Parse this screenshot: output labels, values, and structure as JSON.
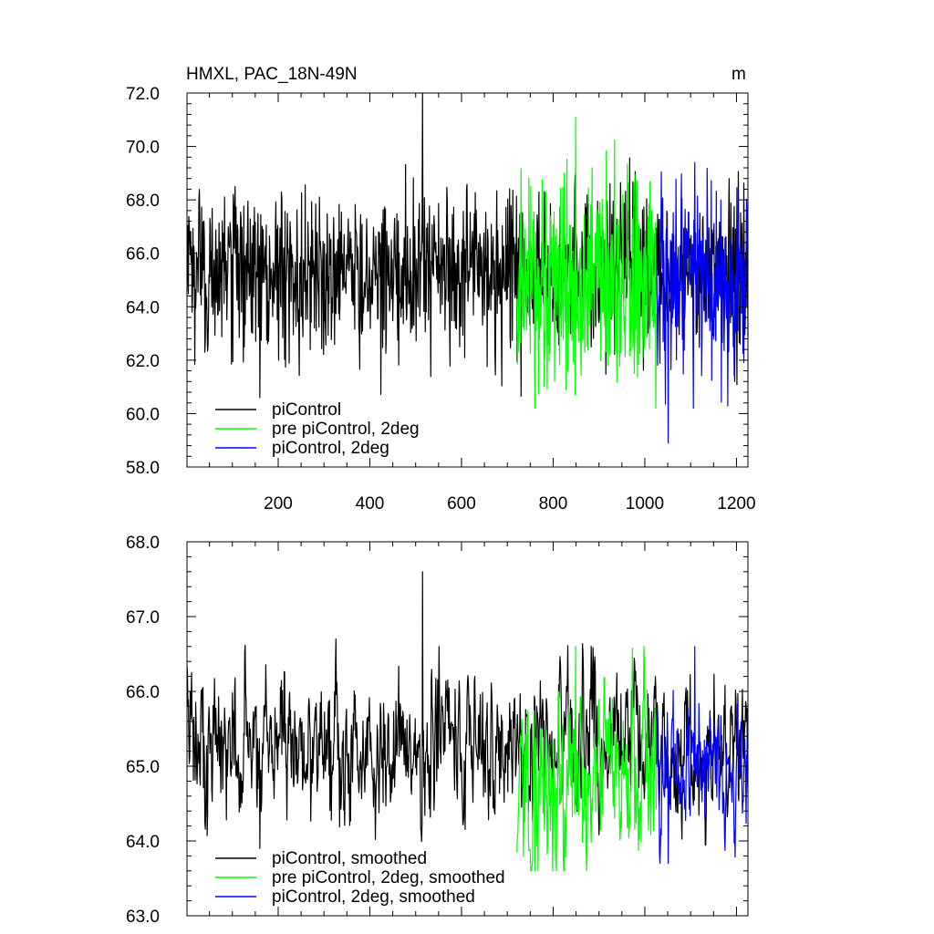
{
  "chart_data": [
    {
      "type": "line",
      "title": "HMXL, PAC_18N-49N",
      "units": "m",
      "xlim": [
        1,
        1225
      ],
      "ylim": [
        58.0,
        72.0
      ],
      "xticks": [
        200,
        400,
        600,
        800,
        1000,
        1200
      ],
      "xtick_labels": [
        "200",
        "400",
        "600",
        "800",
        "1000",
        "1200"
      ],
      "yticks": [
        58.0,
        60.0,
        62.0,
        64.0,
        66.0,
        68.0,
        70.0,
        72.0
      ],
      "ytick_labels": [
        "58.0",
        "60.0",
        "62.0",
        "64.0",
        "66.0",
        "68.0",
        "70.0",
        "72.0"
      ],
      "grid": false,
      "legend_position": "bottom-left",
      "series": [
        {
          "name": "piControl",
          "color": "#000000",
          "x_range": [
            1,
            1225
          ],
          "mean": 65.3,
          "sd": 1.5,
          "min": 60.6,
          "max": 72.0
        },
        {
          "name": "pre piControl, 2deg",
          "color": "#00ff00",
          "x_range": [
            721,
            1025
          ],
          "mean": 64.9,
          "sd": 1.9,
          "min": 60.2,
          "max": 71.1
        },
        {
          "name": "piControl, 2deg",
          "color": "#0000ff",
          "x_range": [
            1025,
            1225
          ],
          "mean": 64.9,
          "sd": 1.8,
          "min": 58.9,
          "max": 69.4
        }
      ]
    },
    {
      "type": "line",
      "title": "",
      "xlim": [
        1,
        1225
      ],
      "ylim": [
        63.0,
        68.0
      ],
      "xticks": [
        200,
        400,
        600,
        800,
        1000,
        1200
      ],
      "yticks": [
        63.0,
        64.0,
        65.0,
        66.0,
        67.0,
        68.0
      ],
      "ytick_labels": [
        "63.0",
        "64.0",
        "65.0",
        "66.0",
        "67.0",
        "68.0"
      ],
      "grid": false,
      "legend_position": "bottom-left",
      "series": [
        {
          "name": "piControl, smoothed",
          "color": "#000000",
          "x_range": [
            1,
            1225
          ],
          "mean": 65.3,
          "sd": 0.55,
          "min": 63.9,
          "max": 67.6
        },
        {
          "name": "pre piControl, 2deg, smoothed",
          "color": "#00ff00",
          "x_range": [
            721,
            1025
          ],
          "mean": 64.8,
          "sd": 0.65,
          "min": 63.6,
          "max": 66.6
        },
        {
          "name": "piControl, 2deg, smoothed",
          "color": "#0000ff",
          "x_range": [
            1025,
            1225
          ],
          "mean": 65.0,
          "sd": 0.55,
          "min": 63.7,
          "max": 66.6
        }
      ]
    }
  ]
}
